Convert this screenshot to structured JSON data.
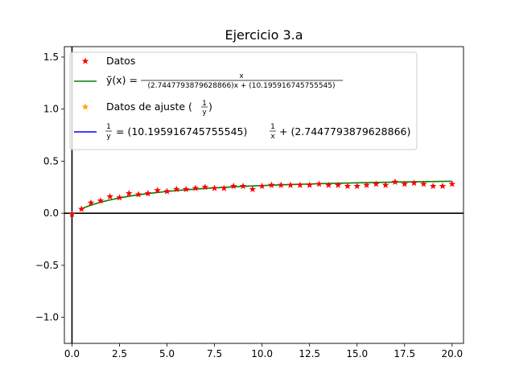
{
  "chart_data": {
    "type": "scatter",
    "title": "Ejercicio 3.a",
    "xlabel": "",
    "ylabel": "",
    "xlim": [
      -0.4,
      20.6
    ],
    "ylim": [
      -1.25,
      1.6
    ],
    "x_ticks": [
      0.0,
      2.5,
      5.0,
      7.5,
      10.0,
      12.5,
      15.0,
      17.5,
      20.0
    ],
    "x_tick_labels": [
      "0.0",
      "2.5",
      "5.0",
      "7.5",
      "10.0",
      "12.5",
      "15.0",
      "17.5",
      "20.0"
    ],
    "y_ticks": [
      -1.0,
      -0.5,
      0.0,
      0.5,
      1.0,
      1.5
    ],
    "y_tick_labels": [
      "−1.0",
      "−0.5",
      "0.0",
      "0.5",
      "1.0",
      "1.5"
    ],
    "grid": false,
    "legend_position": "upper-left",
    "reference_lines": {
      "horizontal_y": 0,
      "vertical_x": 0,
      "color": "#000000"
    },
    "fit": {
      "a": 2.7447793879628866,
      "b": 10.195916745755545
    },
    "series": [
      {
        "name": "Datos",
        "kind": "scatter",
        "marker": "star",
        "color": "#ff0000",
        "x": [
          0.0,
          0.5,
          1.0,
          1.5,
          2.0,
          2.5,
          3.0,
          3.5,
          4.0,
          4.5,
          5.0,
          5.5,
          6.0,
          6.5,
          7.0,
          7.5,
          8.0,
          8.5,
          9.0,
          9.5,
          10.0,
          10.5,
          11.0,
          11.5,
          12.0,
          12.5,
          13.0,
          13.5,
          14.0,
          14.5,
          15.0,
          15.5,
          16.0,
          16.5,
          17.0,
          17.5,
          18.0,
          18.5,
          19.0,
          19.5,
          20.0
        ],
        "y": [
          -0.01,
          0.04,
          0.1,
          0.12,
          0.16,
          0.15,
          0.19,
          0.18,
          0.19,
          0.22,
          0.21,
          0.23,
          0.23,
          0.24,
          0.25,
          0.24,
          0.24,
          0.26,
          0.26,
          0.23,
          0.26,
          0.27,
          0.27,
          0.27,
          0.27,
          0.27,
          0.28,
          0.27,
          0.27,
          0.26,
          0.26,
          0.27,
          0.28,
          0.27,
          0.3,
          0.28,
          0.29,
          0.28,
          0.26,
          0.26,
          0.28
        ]
      },
      {
        "name": "ỹ(x) = x / ((2.7447793879628866)x + (10.195916745755545))",
        "kind": "line",
        "color": "#008000",
        "x_range": [
          0.5,
          20.0
        ]
      },
      {
        "name": "Datos de ajuste (1/y)",
        "kind": "scatter",
        "marker": "star",
        "color": "#ffa500",
        "x": [],
        "y": []
      },
      {
        "name": "1/y = (10.195916745755545)(1/x) + (2.7447793879628866)",
        "kind": "line",
        "color": "#0000ff",
        "x": [],
        "y": []
      }
    ]
  },
  "legend": {
    "datos": "Datos",
    "fit_lhs": "ỹ(x) =",
    "fit_num": "x",
    "fit_den": "(2.7447793879628866)x + (10.195916745755545)",
    "ajuste_label": "Datos de ajuste (",
    "ajuste_frac_num": "1",
    "ajuste_frac_den": "y",
    "ajuste_close": ")",
    "inv_lhs_num": "1",
    "inv_lhs_den": "y",
    "inv_eq": "= (10.195916745755545)",
    "inv_rhs_num": "1",
    "inv_rhs_den": "x",
    "inv_tail": "+ (2.7447793879628866)"
  }
}
